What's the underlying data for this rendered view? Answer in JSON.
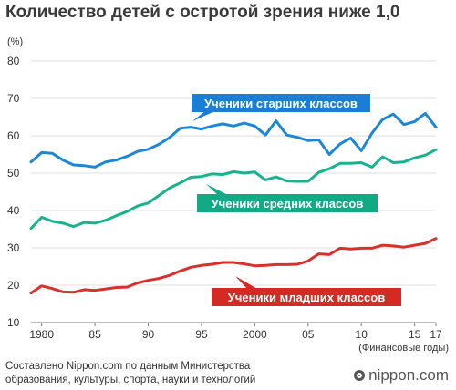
{
  "title": "Количество детей с остротой зрения ниже 1,0",
  "footer": {
    "source_line1": "Составлено Nippon.com по данным Министерства",
    "source_line2": "образования, культуры, спорта, науки и технологий",
    "brand": "nippon.com"
  },
  "chart_data": {
    "type": "line",
    "title": "Количество детей с остротой зрения ниже 1,0",
    "ylabel": "(%)",
    "xlabel": "(Финансовые годы)",
    "xlim": [
      1979,
      2017
    ],
    "ylim": [
      10,
      80
    ],
    "y_ticks": [
      10,
      20,
      30,
      40,
      50,
      60,
      70,
      80
    ],
    "x_ticks": [
      {
        "value": 1980,
        "label": "1980"
      },
      {
        "value": 1985,
        "label": "85"
      },
      {
        "value": 1990,
        "label": "90"
      },
      {
        "value": 1995,
        "label": "95"
      },
      {
        "value": 2000,
        "label": "2000"
      },
      {
        "value": 2005,
        "label": "05"
      },
      {
        "value": 2010,
        "label": "10"
      },
      {
        "value": 2015,
        "label": "15"
      },
      {
        "value": 2017,
        "label": "17"
      }
    ],
    "grid": true,
    "x": [
      1979,
      1980,
      1981,
      1982,
      1983,
      1984,
      1985,
      1986,
      1987,
      1988,
      1989,
      1990,
      1991,
      1992,
      1993,
      1994,
      1995,
      1996,
      1997,
      1998,
      1999,
      2000,
      2001,
      2002,
      2003,
      2004,
      2005,
      2006,
      2007,
      2008,
      2009,
      2010,
      2011,
      2012,
      2013,
      2014,
      2015,
      2016,
      2017
    ],
    "series": [
      {
        "name": "Ученики старших классов",
        "color": "#1d87d7",
        "label_fill": "#1a7fd4",
        "values": [
          53.0,
          55.5,
          55.3,
          53.5,
          52.2,
          52.0,
          51.6,
          53.0,
          53.5,
          54.5,
          55.8,
          56.4,
          57.7,
          59.5,
          62.0,
          62.3,
          61.8,
          62.6,
          63.2,
          62.6,
          63.4,
          62.6,
          60.2,
          64.0,
          60.2,
          59.6,
          58.7,
          58.9,
          55.0,
          57.8,
          59.4,
          56.0,
          60.7,
          64.4,
          65.8,
          63.0,
          63.8,
          66.0,
          62.3
        ]
      },
      {
        "name": "Ученики средних классов",
        "color": "#16b38e",
        "label_fill": "#12a985",
        "values": [
          35.2,
          38.2,
          37.1,
          36.6,
          35.7,
          36.8,
          36.6,
          37.4,
          38.6,
          39.7,
          41.2,
          42.0,
          44.0,
          46.0,
          47.4,
          48.9,
          49.1,
          49.8,
          49.6,
          50.4,
          50.0,
          50.3,
          48.2,
          49.0,
          47.9,
          47.8,
          47.8,
          50.2,
          51.2,
          52.6,
          52.6,
          52.8,
          51.6,
          54.4,
          52.8,
          53.0,
          54.1,
          54.8,
          56.3
        ]
      },
      {
        "name": "Ученики младших классов",
        "color": "#d9302c",
        "label_fill": "#d42a24",
        "values": [
          17.9,
          19.8,
          19.1,
          18.2,
          18.1,
          18.8,
          18.6,
          19.0,
          19.4,
          19.5,
          20.6,
          21.3,
          21.8,
          22.6,
          23.8,
          24.8,
          25.3,
          25.6,
          26.1,
          26.1,
          25.7,
          25.2,
          25.3,
          25.5,
          25.5,
          25.6,
          26.5,
          28.4,
          28.2,
          29.9,
          29.7,
          29.9,
          29.9,
          30.7,
          30.5,
          30.2,
          30.7,
          31.2,
          32.5
        ]
      }
    ]
  }
}
